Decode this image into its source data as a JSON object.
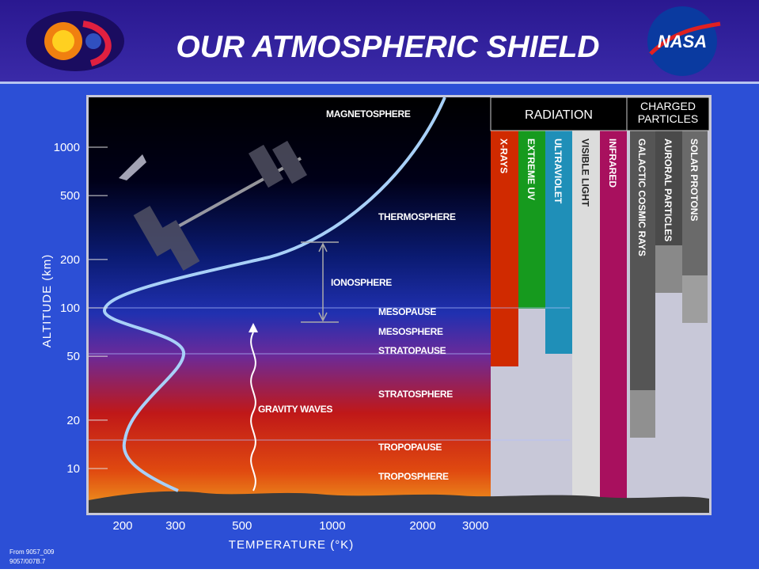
{
  "header": {
    "title": "OUR ATMOSPHERIC SHIELD",
    "logo": "NASA"
  },
  "y_axis": {
    "label": "ALTITUDE (km)",
    "ticks": [
      1000,
      500,
      200,
      100,
      50,
      20,
      10
    ],
    "scale": "log"
  },
  "x_axis": {
    "label": "TEMPERATURE (°K)",
    "ticks": [
      200,
      300,
      500,
      1000,
      2000,
      3000
    ],
    "scale": "log"
  },
  "layers": [
    "MAGNETOSPHERE",
    "THERMOSPHERE",
    "IONOSPHERE",
    "MESOPAUSE",
    "MESOSPHERE",
    "STRATOPAUSE",
    "STRATOSPHERE",
    "GRAVITY WAVES",
    "TROPOPAUSE",
    "TROPOSPHERE"
  ],
  "radiation": {
    "header": "RADIATION",
    "bands": [
      {
        "name": "X-RAYS",
        "color": "#d02a00"
      },
      {
        "name": "EXTREME UV",
        "color": "#169a1e"
      },
      {
        "name": "ULTRAVIOLET",
        "color": "#1f8fb8"
      },
      {
        "name": "VISIBLE LIGHT",
        "color": "#dcdcdc"
      },
      {
        "name": "INFRARED",
        "color": "#a8105e"
      }
    ]
  },
  "charged": {
    "header": "CHARGED PARTICLES",
    "bands": [
      {
        "name": "GALACTIC COSMIC RAYS",
        "color": "#555555"
      },
      {
        "name": "AURORAL PARTICLES",
        "color": "#4a4a4a"
      },
      {
        "name": "SOLAR PROTONS",
        "color": "#6a6a6a"
      }
    ]
  },
  "footer": [
    "From 9057_009",
    "9057/007B.7"
  ]
}
